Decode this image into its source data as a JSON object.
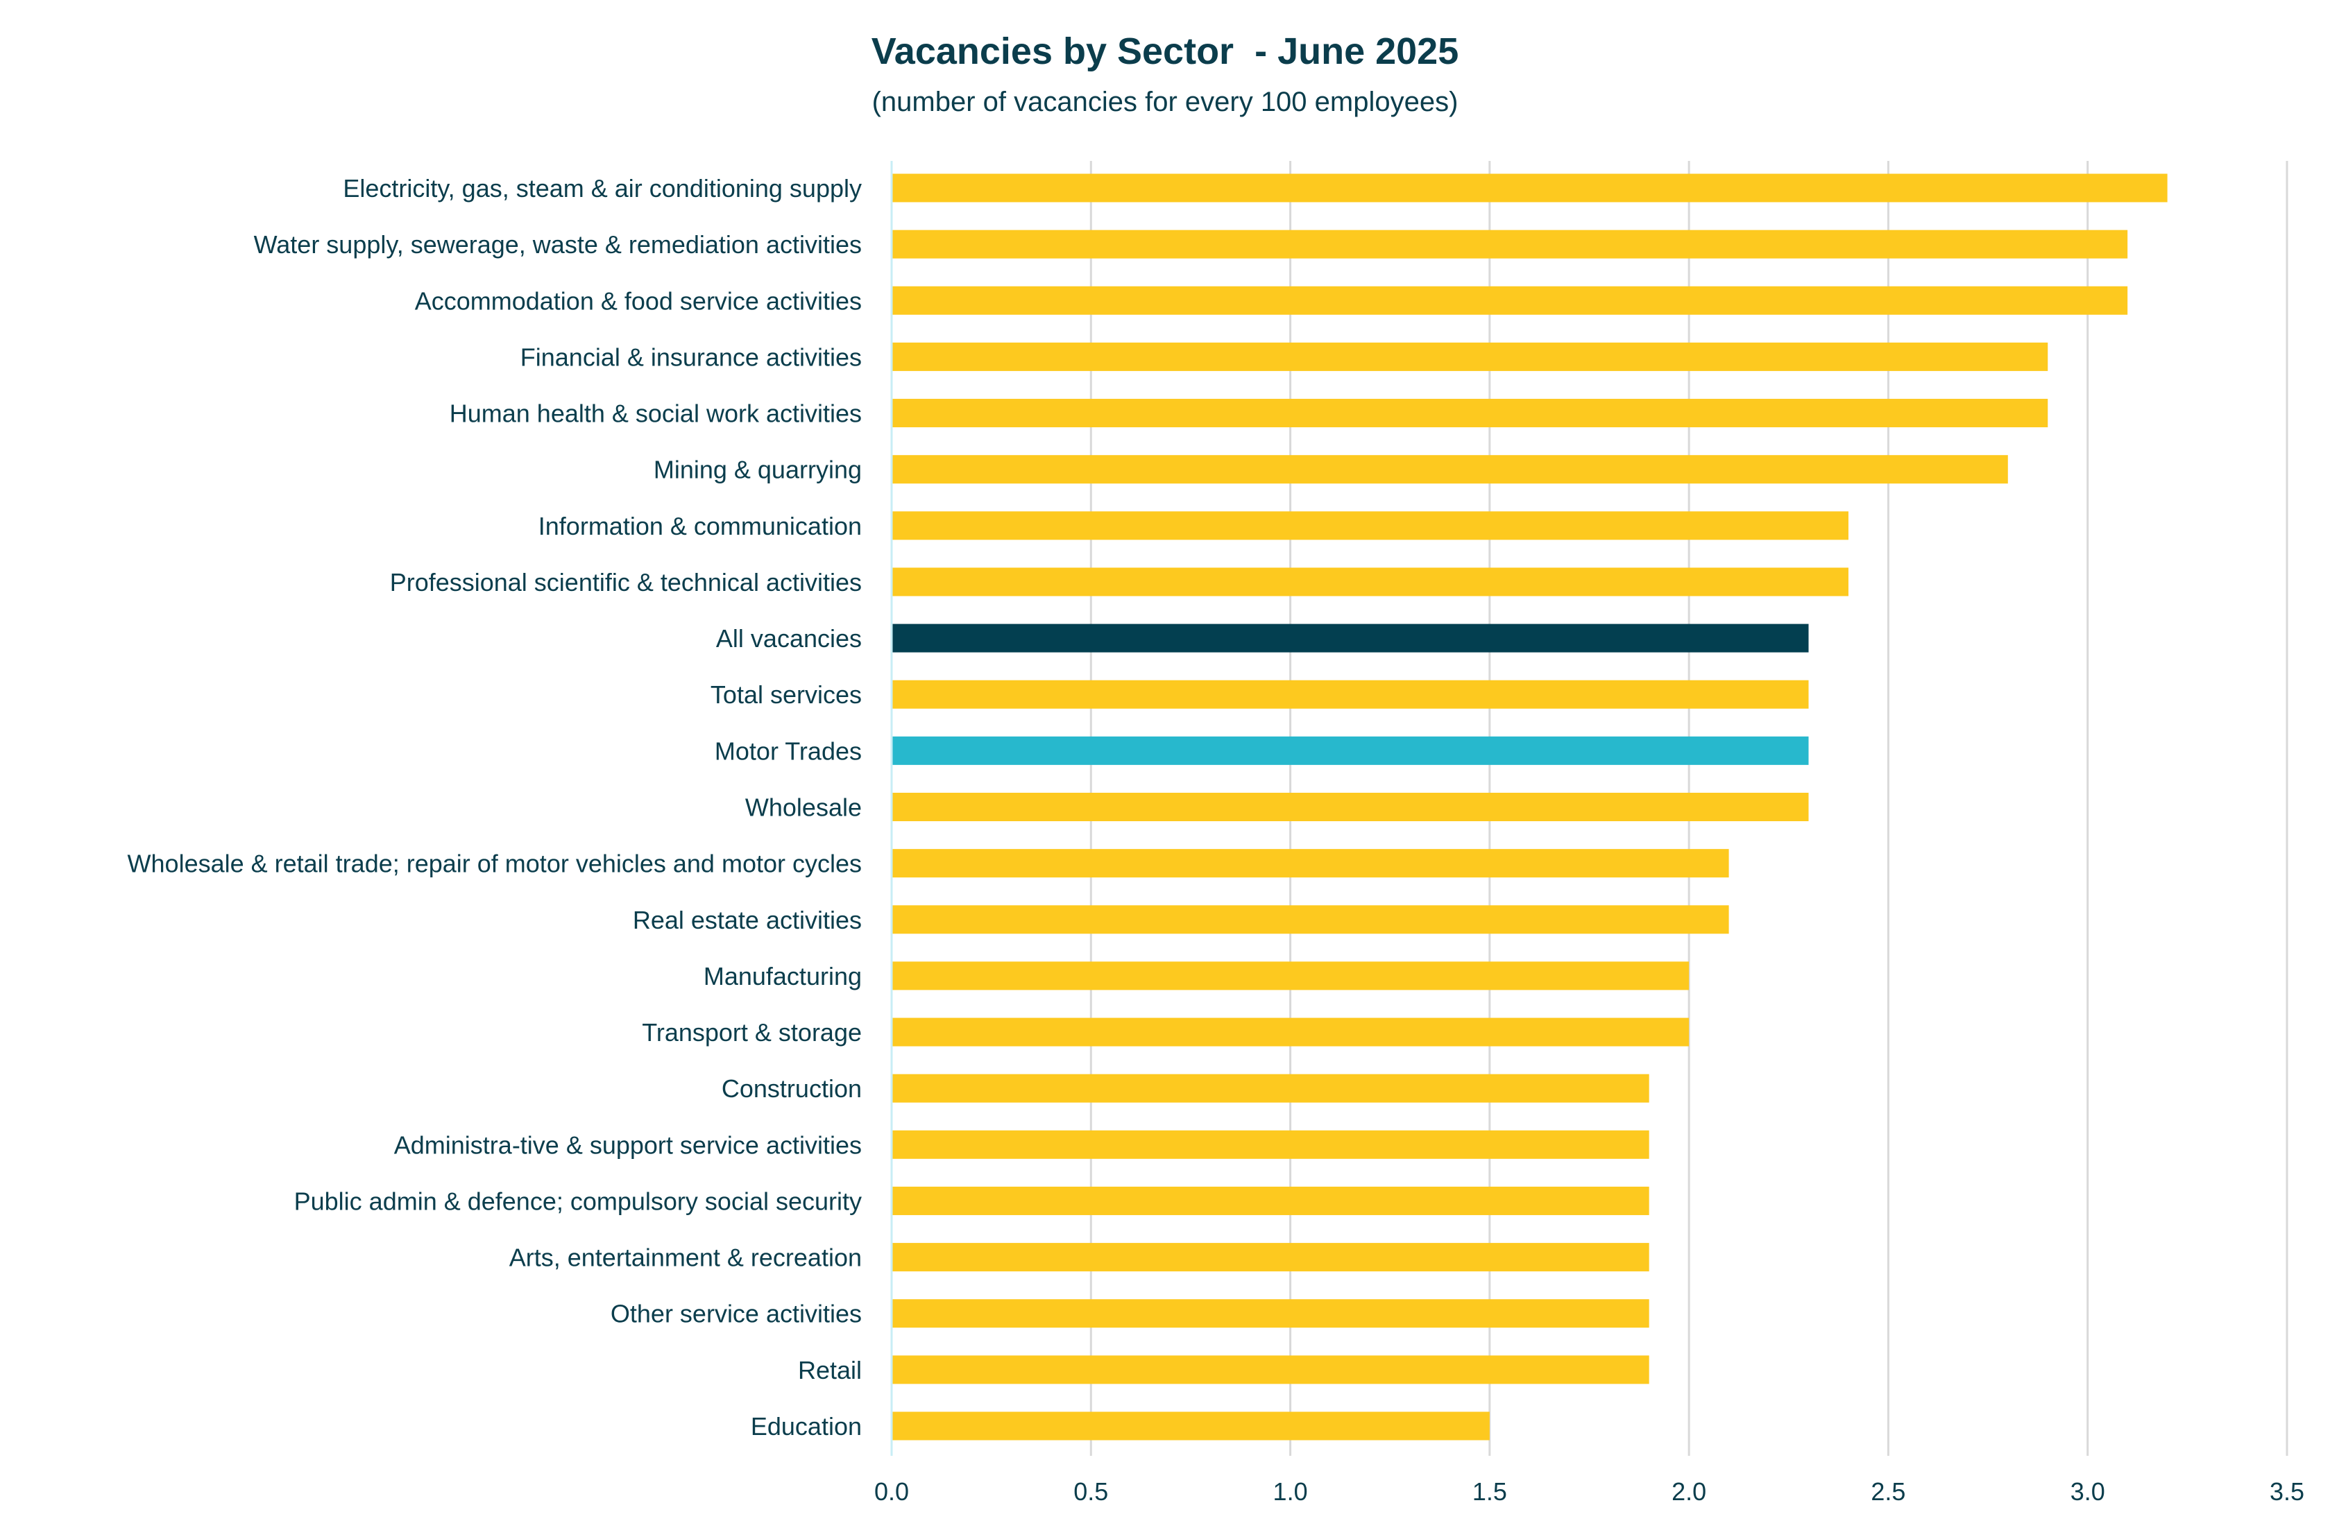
{
  "chart_data": {
    "type": "bar",
    "orientation": "horizontal",
    "title": "Vacancies by Sector  - June 2025",
    "subtitle": "(number of vacancies for every 100 employees)",
    "xlabel": "",
    "ylabel": "",
    "xlim": [
      0,
      3.5
    ],
    "xticks": [
      "0.0",
      "0.5",
      "1.0",
      "1.5",
      "2.0",
      "2.5",
      "3.0",
      "3.5"
    ],
    "grid": true,
    "legend": "none",
    "categories": [
      "Electricity, gas, steam & air conditioning supply",
      "Water supply, sewerage, waste & remediation activities",
      "Accommodation & food service activities",
      "Financial & insurance activities",
      "Human health & social work activities",
      "Mining & quarrying",
      "Information & communication",
      "Professional scientific & technical activities",
      "All vacancies",
      "Total services ",
      "Motor Trades",
      "Wholesale",
      "Wholesale & retail trade; repair of motor vehicles and motor cycles",
      "Real estate activities",
      "Manufacturing",
      "Transport & storage",
      "Construction",
      "Administra-tive & support service activities",
      "Public admin & defence; compulsory social security",
      "Arts, entertainment & recreation",
      "Other service activities",
      "Retail",
      "Education"
    ],
    "values": [
      3.2,
      3.1,
      3.1,
      2.9,
      2.9,
      2.8,
      2.4,
      2.4,
      2.3,
      2.3,
      2.3,
      2.3,
      2.1,
      2.1,
      2.0,
      2.0,
      1.9,
      1.9,
      1.9,
      1.9,
      1.9,
      1.9,
      1.5
    ],
    "bar_colors": [
      "#FDC91F",
      "#FDC91F",
      "#FDC91F",
      "#FDC91F",
      "#FDC91F",
      "#FDC91F",
      "#FDC91F",
      "#FDC91F",
      "#033F50",
      "#FDC91F",
      "#27B8CD",
      "#FDC91F",
      "#FDC91F",
      "#FDC91F",
      "#FDC91F",
      "#FDC91F",
      "#FDC91F",
      "#FDC91F",
      "#FDC91F",
      "#FDC91F",
      "#FDC91F",
      "#FDC91F",
      "#FDC91F"
    ]
  }
}
